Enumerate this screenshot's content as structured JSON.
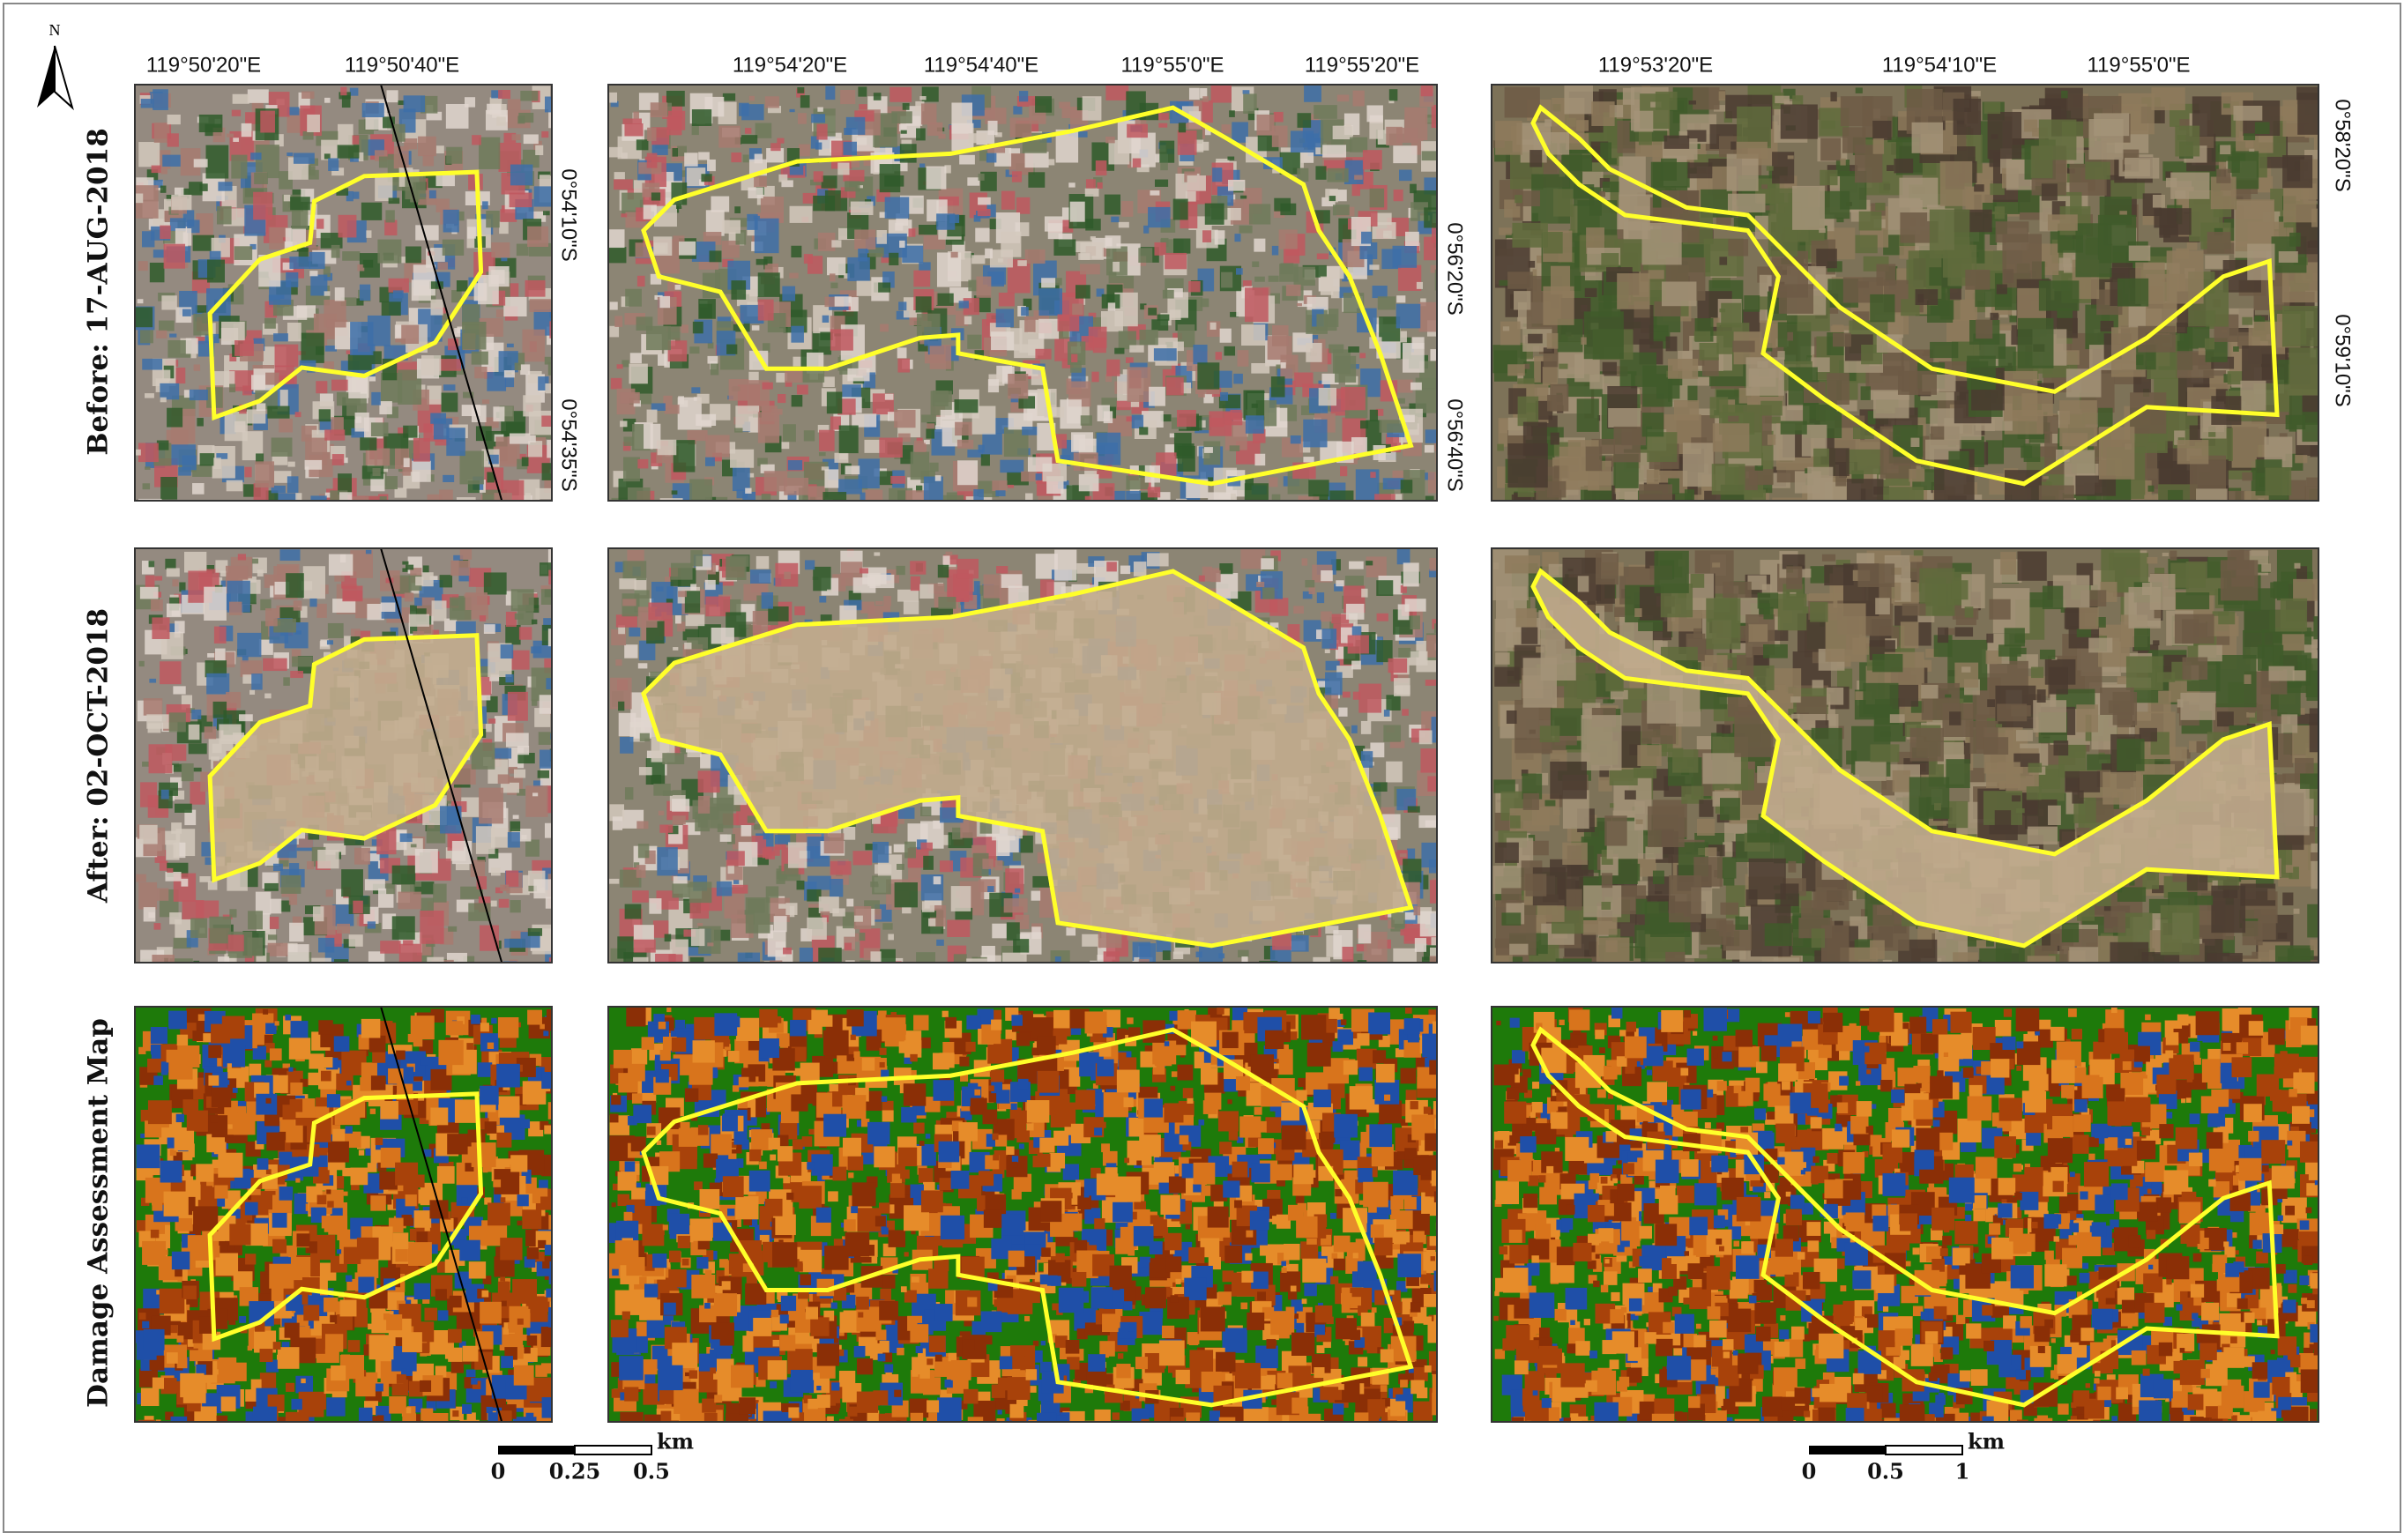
{
  "figure": {
    "north_label": "N",
    "row_labels": [
      "Before: 17-AUG-2018",
      "After: 02-OCT-2018",
      "Damage Assessment Map"
    ],
    "columns": [
      {
        "lon_labels": [
          "119°50'20\"E",
          "119°50'40\"E"
        ],
        "lat_labels": [
          "0°54'10\"S",
          "0°54'35\"S"
        ]
      },
      {
        "lon_labels": [
          "119°54'20\"E",
          "119°54'40\"E",
          "119°55'0\"E",
          "119°55'20\"E"
        ],
        "lat_labels": [
          "0°56'20\"S",
          "0°56'40\"S"
        ]
      },
      {
        "lon_labels": [
          "119°53'20\"E",
          "119°54'10\"E",
          "119°55'0\"E"
        ],
        "lat_labels": [
          "0°58'20\"S",
          "0°59'10\"S"
        ]
      }
    ],
    "scale_bars": [
      {
        "unit": "km",
        "labels": [
          "0",
          "0.25",
          "0.5"
        ]
      },
      {
        "unit": "km",
        "labels": [
          "0",
          "0.5",
          "1"
        ]
      }
    ]
  }
}
